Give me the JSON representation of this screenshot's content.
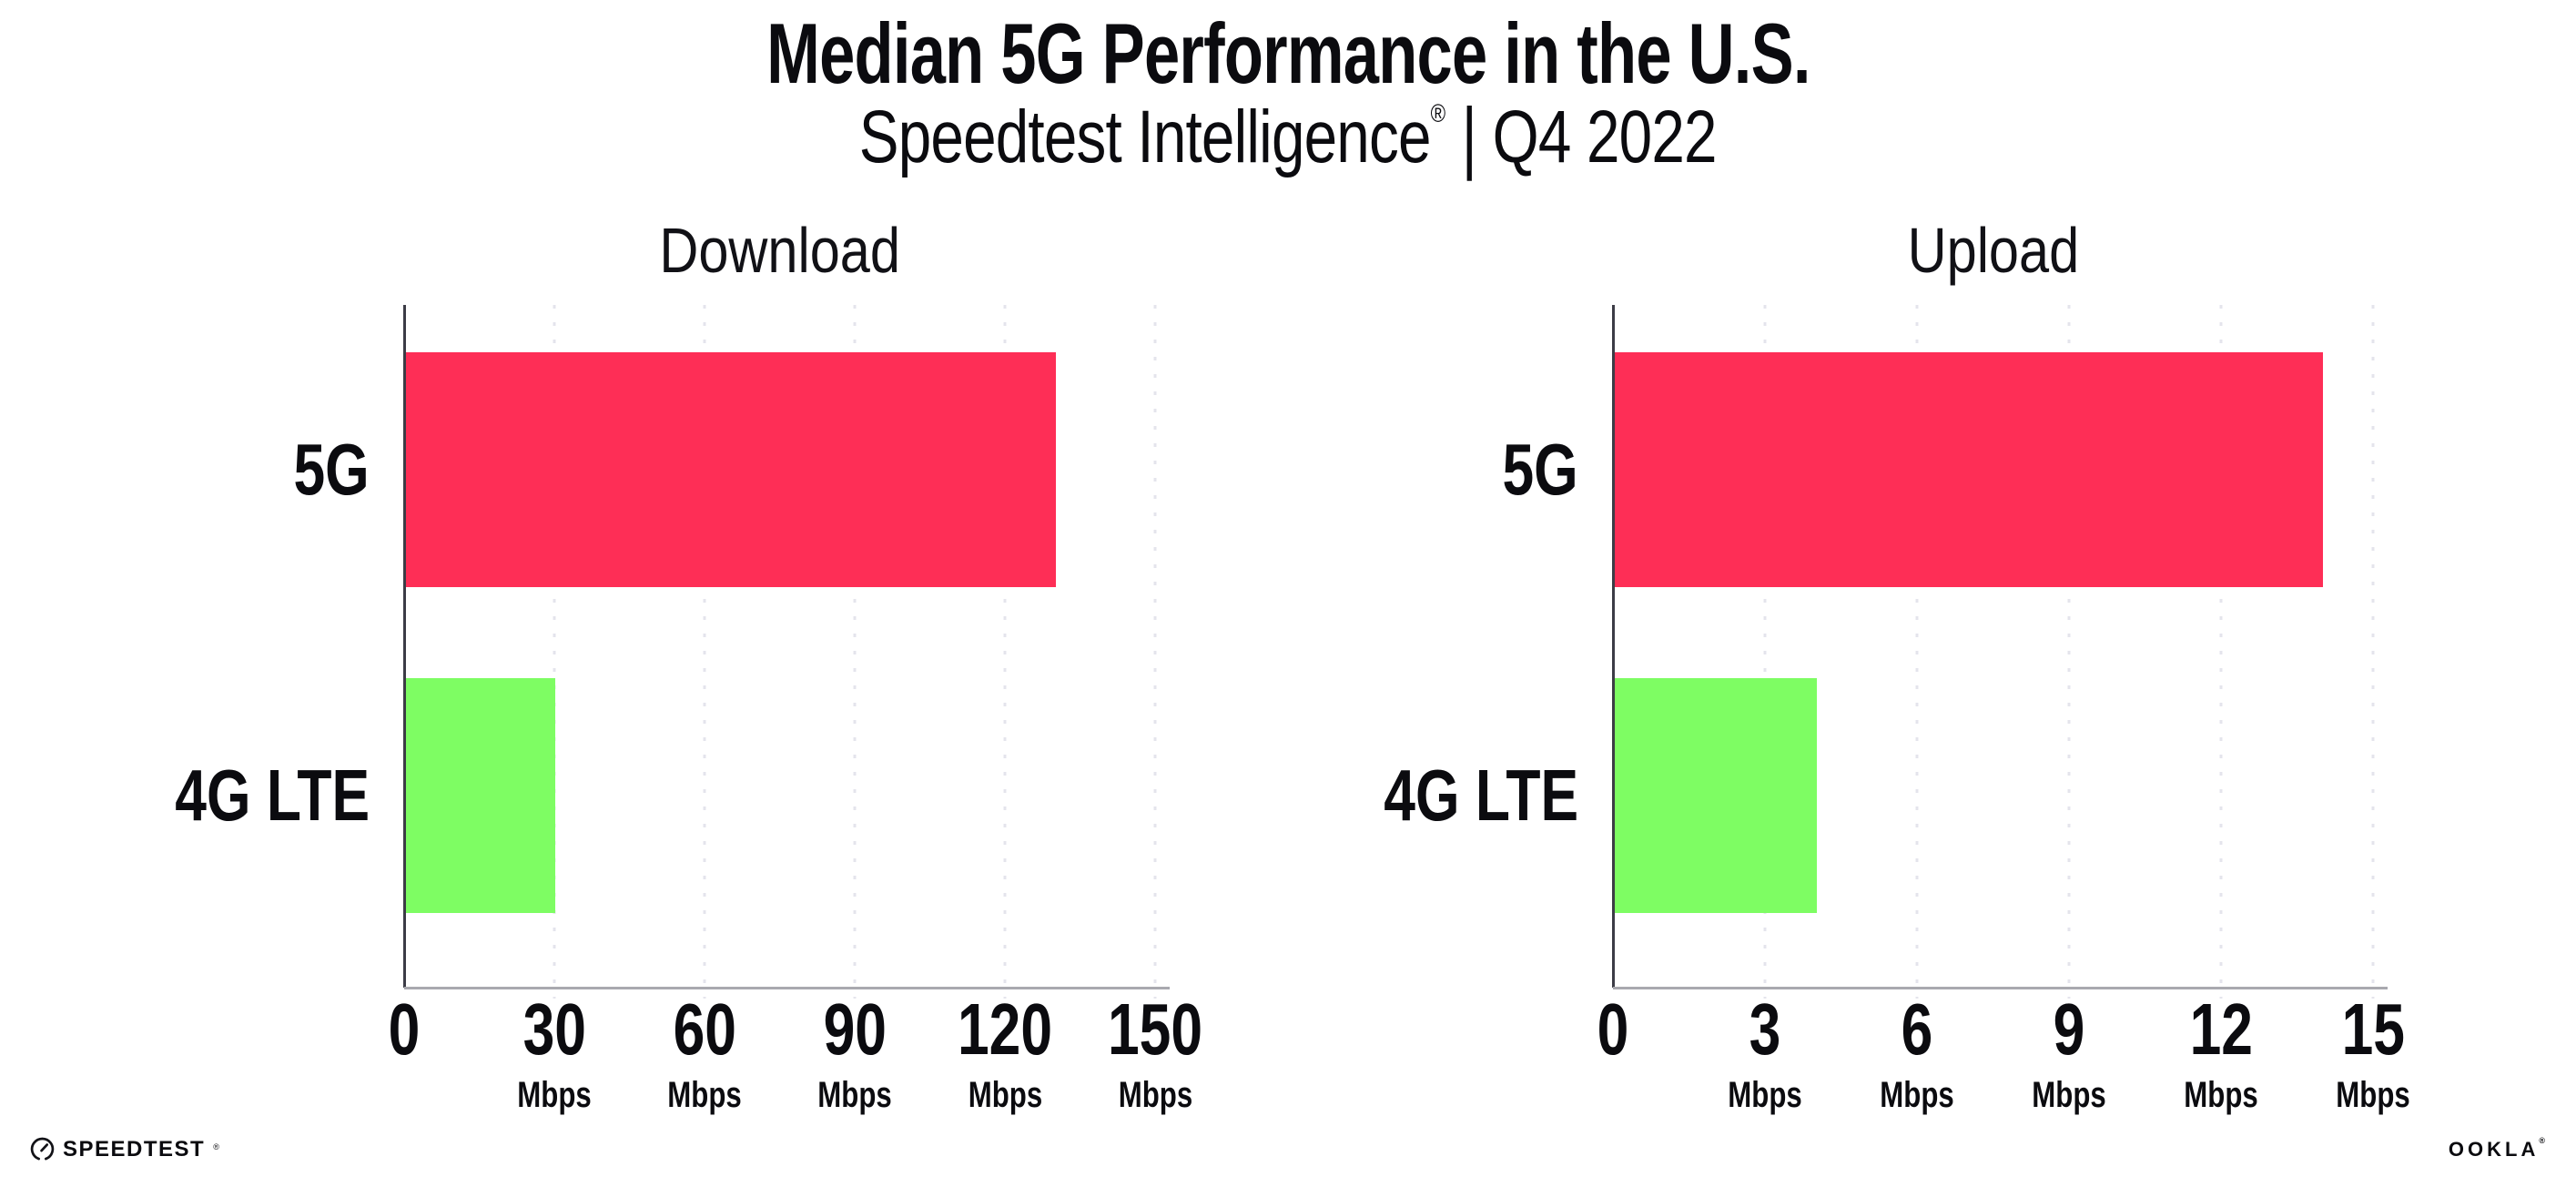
{
  "header": {
    "title": "Median 5G Performance in the U.S.",
    "subtitle_brand": "Speedtest Intelligence",
    "subtitle_reg": "®",
    "subtitle_sep": "|",
    "subtitle_period": "Q4 2022"
  },
  "colors": {
    "bar_5g": "#FE2E56",
    "bar_4g_lte": "#7EFD63",
    "gridline": "#E4E4EC",
    "y_axis_spine": "#3C3C46",
    "x_axis_baseline": "#A9A9AF",
    "text": "#0B0B0F"
  },
  "chart_data": [
    {
      "type": "bar",
      "orientation": "horizontal",
      "title": "Download",
      "unit": "Mbps",
      "categories": [
        "5G",
        "4G LTE"
      ],
      "values": [
        130,
        30
      ],
      "xlim": [
        0,
        150
      ],
      "xticks": [
        0,
        30,
        60,
        90,
        120,
        150
      ],
      "grid": "dotted-vertical",
      "legend": "none",
      "bar_colors": [
        "#FE2E56",
        "#7EFD63"
      ]
    },
    {
      "type": "bar",
      "orientation": "horizontal",
      "title": "Upload",
      "unit": "Mbps",
      "categories": [
        "5G",
        "4G LTE"
      ],
      "values": [
        14,
        4
      ],
      "xlim": [
        0,
        15
      ],
      "xticks": [
        0,
        3,
        6,
        9,
        12,
        15
      ],
      "grid": "dotted-vertical",
      "legend": "none",
      "bar_colors": [
        "#FE2E56",
        "#7EFD63"
      ]
    }
  ],
  "footer": {
    "speedtest_label": "SPEEDTEST",
    "speedtest_reg": "®",
    "speedtest_icon": "speedometer-gauge-icon",
    "ookla_label": "OOKLA",
    "ookla_reg": "®"
  }
}
